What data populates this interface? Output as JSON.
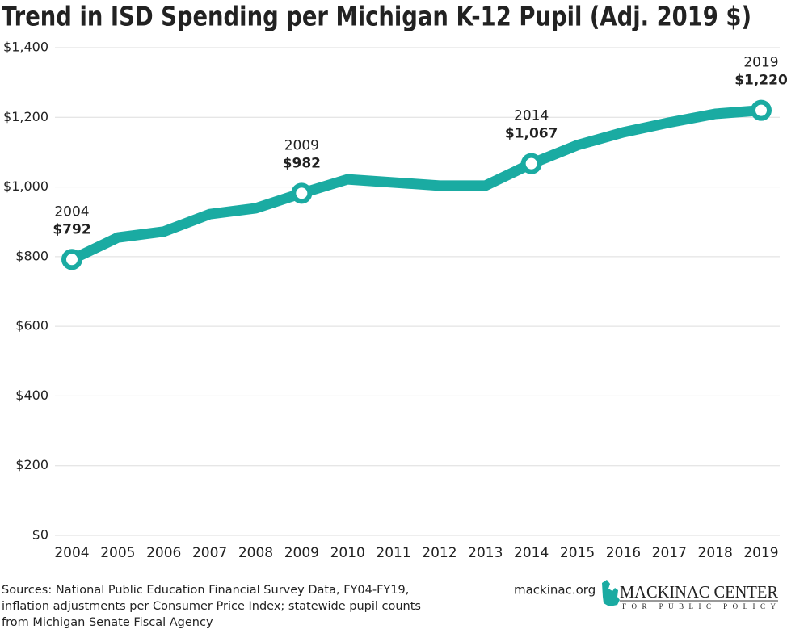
{
  "chart_data": {
    "type": "line",
    "title": "Trend in ISD Spending per Michigan K-12 Pupil (Adj. 2019 $)",
    "categories": [
      "2004",
      "2005",
      "2006",
      "2007",
      "2008",
      "2009",
      "2010",
      "2011",
      "2012",
      "2013",
      "2014",
      "2015",
      "2016",
      "2017",
      "2018",
      "2019"
    ],
    "values": [
      792,
      855,
      872,
      922,
      939,
      982,
      1022,
      1013,
      1004,
      1004,
      1067,
      1120,
      1157,
      1185,
      1210,
      1220
    ],
    "value_labels": [
      "$792",
      null,
      null,
      null,
      null,
      "$982",
      null,
      null,
      null,
      null,
      "$1,067",
      null,
      null,
      null,
      null,
      "$1,220"
    ],
    "color": "#1aaba2",
    "ylim": [
      0,
      1400
    ],
    "yticks": [
      {
        "value": 0,
        "label": "$0"
      },
      {
        "value": 200,
        "label": "$200"
      },
      {
        "value": 400,
        "label": "$400"
      },
      {
        "value": 600,
        "label": "$600"
      },
      {
        "value": 800,
        "label": "$800"
      },
      {
        "value": 1000,
        "label": "$1,000"
      },
      {
        "value": 1200,
        "label": "$1,200"
      },
      {
        "value": 1400,
        "label": "$1,400"
      }
    ],
    "grid": true
  },
  "footer": {
    "source": [
      "Sources: National Public Education Financial Survey Data, FY04-FY19,",
      "inflation adjustments per Consumer Price Index; statewide pupil counts",
      "from Michigan Senate Fiscal Agency"
    ],
    "website": "mackinac.org",
    "logo": {
      "name": "MACKINAC CENTER",
      "tagline": "FOR PUBLIC POLICY"
    }
  }
}
